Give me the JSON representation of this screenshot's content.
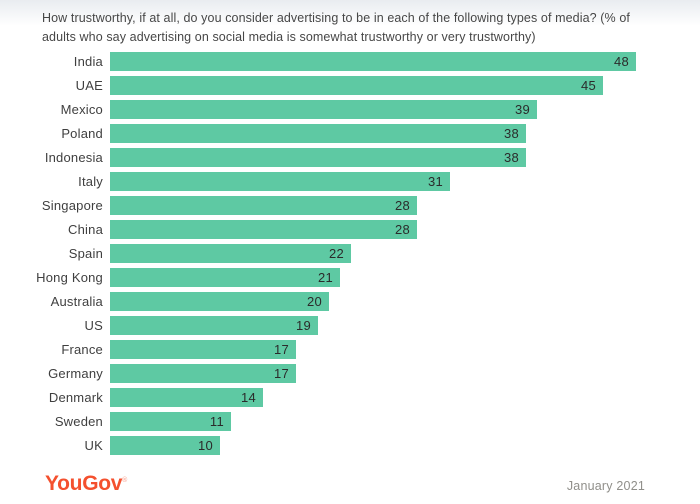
{
  "title": {
    "lines": [
      "How trustworthy, if at all, do you consider advertising to be in each of the following types of media? (% of",
      "adults who say advertising on social media is somewhat trustworthy or very trustworthy)"
    ]
  },
  "chart_data": {
    "type": "bar",
    "orientation": "horizontal",
    "categories": [
      "India",
      "UAE",
      "Mexico",
      "Poland",
      "Indonesia",
      "Italy",
      "Singapore",
      "China",
      "Spain",
      "Hong Kong",
      "Australia",
      "US",
      "France",
      "Germany",
      "Denmark",
      "Sweden",
      "UK"
    ],
    "values": [
      48,
      45,
      39,
      38,
      38,
      31,
      28,
      28,
      22,
      21,
      20,
      19,
      17,
      17,
      14,
      11,
      10
    ],
    "title": "How trustworthy, if at all, do you consider advertising to be in each of the following types of media? (% of adults who say advertising on social media is somewhat trustworthy or very trustworthy)",
    "xlabel": "",
    "ylabel": "",
    "xlim": [
      0,
      48
    ],
    "grid": false,
    "legend": "none",
    "value_labels": "inside-end",
    "bar_color": "#5ec9a3",
    "value_label_color": "#2b2b2b"
  },
  "footer": {
    "logo_text": "YouGov",
    "logo_mark": "®",
    "logo_color": "#f4502e",
    "date": "January 2021"
  }
}
